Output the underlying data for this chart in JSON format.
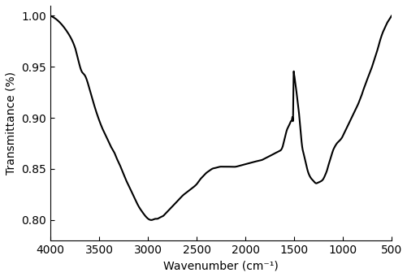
{
  "title": "",
  "xlabel": "Wavenumber (cm⁻¹)",
  "ylabel": "Transmittance (%)",
  "xlim": [
    4000,
    500
  ],
  "ylim": [
    0.78,
    1.01
  ],
  "xticks": [
    4000,
    3500,
    3000,
    2500,
    2000,
    1500,
    1000,
    500
  ],
  "yticks": [
    0.8,
    0.85,
    0.9,
    0.95,
    1.0
  ],
  "line_color": "#000000",
  "line_width": 1.5,
  "background_color": "#ffffff",
  "keypoints_x": [
    4000,
    3960,
    3920,
    3880,
    3840,
    3800,
    3760,
    3730,
    3710,
    3690,
    3670,
    3650,
    3630,
    3610,
    3580,
    3550,
    3520,
    3490,
    3460,
    3430,
    3400,
    3370,
    3340,
    3310,
    3280,
    3250,
    3220,
    3180,
    3140,
    3100,
    3060,
    3020,
    2980,
    2950,
    2920,
    2900,
    2880,
    2860,
    2840,
    2820,
    2800,
    2760,
    2720,
    2680,
    2640,
    2600,
    2560,
    2520,
    2490,
    2460,
    2430,
    2400,
    2370,
    2340,
    2300,
    2260,
    2220,
    2180,
    2140,
    2100,
    2060,
    2020,
    1980,
    1940,
    1900,
    1860,
    1820,
    1800,
    1780,
    1760,
    1740,
    1720,
    1700,
    1680,
    1660,
    1640,
    1630,
    1620,
    1610,
    1600,
    1590,
    1580,
    1570,
    1560,
    1550,
    1540,
    1530,
    1520,
    1515,
    1510,
    1505,
    1500,
    1495,
    1490,
    1480,
    1470,
    1460,
    1450,
    1440,
    1430,
    1420,
    1400,
    1380,
    1360,
    1340,
    1320,
    1300,
    1280,
    1260,
    1240,
    1220,
    1200,
    1180,
    1160,
    1140,
    1120,
    1100,
    1080,
    1060,
    1040,
    1020,
    1000,
    980,
    960,
    940,
    920,
    900,
    880,
    860,
    840,
    820,
    800,
    780,
    760,
    740,
    720,
    700,
    680,
    660,
    640,
    620,
    600,
    580,
    560,
    540,
    520,
    500
  ],
  "keypoints_y": [
    1.0,
    0.998,
    0.995,
    0.991,
    0.986,
    0.98,
    0.972,
    0.963,
    0.955,
    0.948,
    0.944,
    0.942,
    0.938,
    0.932,
    0.922,
    0.912,
    0.903,
    0.895,
    0.888,
    0.882,
    0.876,
    0.87,
    0.865,
    0.858,
    0.852,
    0.845,
    0.838,
    0.83,
    0.822,
    0.814,
    0.808,
    0.803,
    0.8,
    0.8,
    0.801,
    0.801,
    0.802,
    0.803,
    0.804,
    0.806,
    0.808,
    0.812,
    0.816,
    0.82,
    0.824,
    0.827,
    0.83,
    0.833,
    0.836,
    0.84,
    0.843,
    0.846,
    0.848,
    0.85,
    0.851,
    0.852,
    0.852,
    0.852,
    0.852,
    0.852,
    0.853,
    0.854,
    0.855,
    0.856,
    0.857,
    0.858,
    0.859,
    0.86,
    0.861,
    0.862,
    0.863,
    0.864,
    0.865,
    0.866,
    0.867,
    0.868,
    0.869,
    0.871,
    0.874,
    0.878,
    0.882,
    0.886,
    0.889,
    0.891,
    0.893,
    0.895,
    0.897,
    0.899,
    0.9,
    0.901,
    0.94,
    0.943,
    0.94,
    0.936,
    0.929,
    0.921,
    0.913,
    0.905,
    0.895,
    0.884,
    0.874,
    0.864,
    0.856,
    0.848,
    0.843,
    0.84,
    0.838,
    0.836,
    0.836,
    0.837,
    0.838,
    0.84,
    0.844,
    0.849,
    0.856,
    0.862,
    0.868,
    0.872,
    0.875,
    0.877,
    0.879,
    0.882,
    0.886,
    0.89,
    0.894,
    0.898,
    0.902,
    0.906,
    0.91,
    0.914,
    0.919,
    0.924,
    0.93,
    0.935,
    0.94,
    0.945,
    0.95,
    0.956,
    0.962,
    0.968,
    0.975,
    0.981,
    0.986,
    0.99,
    0.994,
    0.997,
    1.0
  ]
}
